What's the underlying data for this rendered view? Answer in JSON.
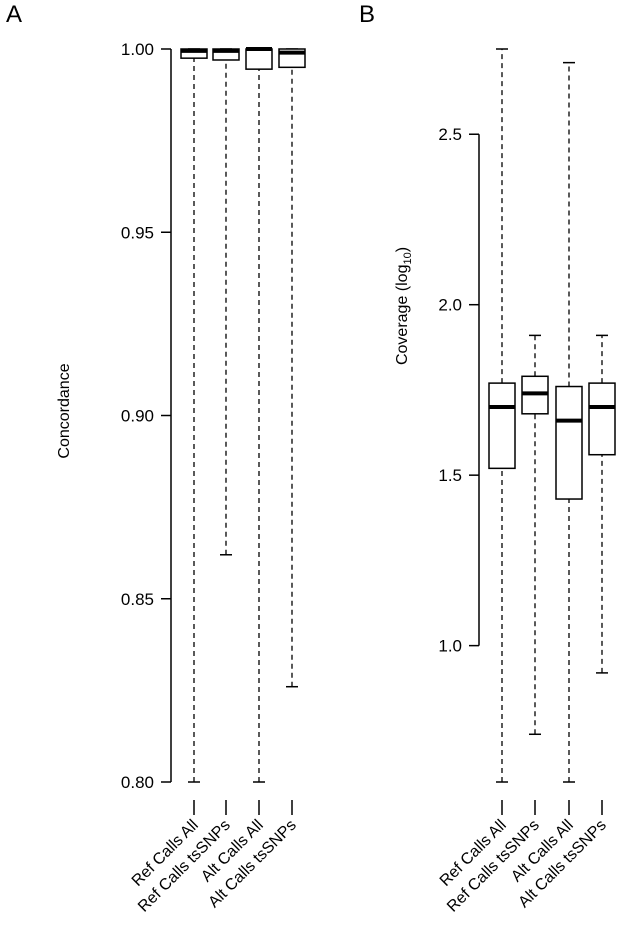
{
  "chart_data": [
    {
      "type": "box",
      "panel_label": "A",
      "ylabel": "Concordance",
      "xlabel": "",
      "ylim": [
        0.8,
        1.0
      ],
      "yticks": [
        0.8,
        0.85,
        0.9,
        0.95,
        1.0
      ],
      "ytick_labels": [
        "0.80",
        "0.85",
        "0.90",
        "0.95",
        "1.00"
      ],
      "categories": [
        "Ref Calls All",
        "Ref Calls tsSNPs",
        "Alt Calls All",
        "Alt Calls tsSNPs"
      ],
      "boxes": [
        {
          "whisker_low": 0.8,
          "q1": 0.9975,
          "median": 0.9995,
          "q3": 1.0,
          "whisker_high": 1.0
        },
        {
          "whisker_low": 0.862,
          "q1": 0.997,
          "median": 0.9995,
          "q3": 1.0,
          "whisker_high": 1.0
        },
        {
          "whisker_low": 0.8,
          "q1": 0.9945,
          "median": 1.0,
          "q3": 1.0,
          "whisker_high": 1.0
        },
        {
          "whisker_low": 0.826,
          "q1": 0.995,
          "median": 0.999,
          "q3": 1.0,
          "whisker_high": 1.0
        }
      ]
    },
    {
      "type": "box",
      "panel_label": "B",
      "ylabel": "Coverage (log",
      "ylabel_sub": "10",
      "ylabel_end": ")",
      "xlabel": "",
      "ylim": [
        0.6,
        2.75
      ],
      "yticks": [
        1.0,
        1.5,
        2.0,
        2.5
      ],
      "ytick_labels": [
        "1.0",
        "1.5",
        "2.0",
        "2.5"
      ],
      "categories": [
        "Ref Calls All",
        "Ref Calls tsSNPs",
        "Alt Calls All",
        "Alt Calls tsSNPs"
      ],
      "boxes": [
        {
          "whisker_low": 0.6,
          "q1": 1.52,
          "median": 1.7,
          "q3": 1.77,
          "whisker_high": 2.75
        },
        {
          "whisker_low": 0.74,
          "q1": 1.68,
          "median": 1.74,
          "q3": 1.79,
          "whisker_high": 1.91
        },
        {
          "whisker_low": 0.6,
          "q1": 1.43,
          "median": 1.66,
          "q3": 1.76,
          "whisker_high": 2.71
        },
        {
          "whisker_low": 0.92,
          "q1": 1.56,
          "median": 1.7,
          "q3": 1.77,
          "whisker_high": 1.91
        }
      ]
    }
  ]
}
